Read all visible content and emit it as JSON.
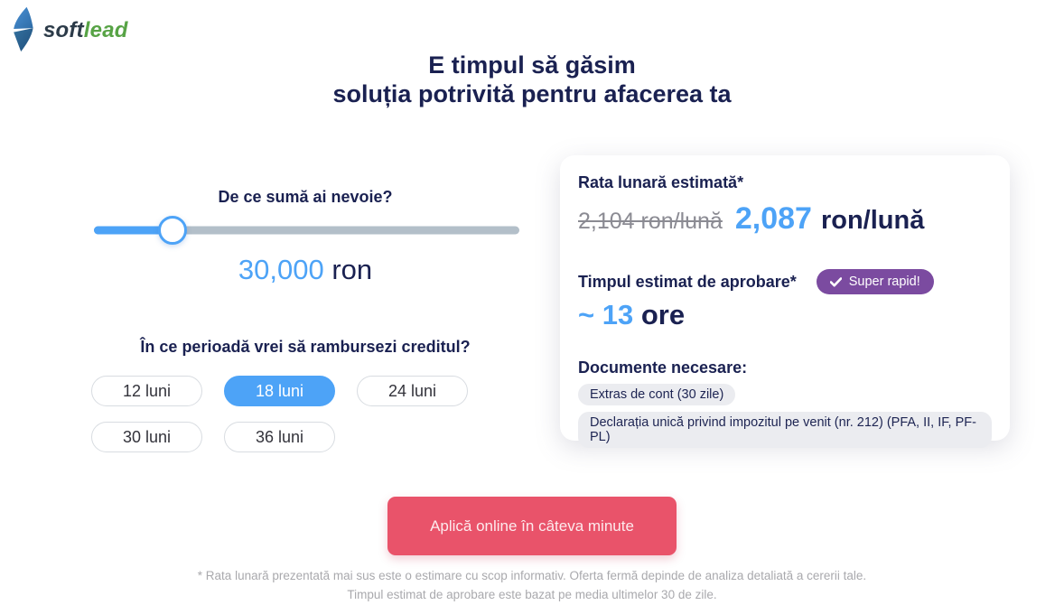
{
  "logo": {
    "brand_soft": "soft",
    "brand_lead": "lead"
  },
  "header": {
    "title_line1": "E timpul să găsim",
    "title_line2": "soluția potrivită pentru afacerea ta"
  },
  "loan": {
    "amount_question": "De ce sumă ai nevoie?",
    "amount_value": "30,000",
    "amount_currency": " ron",
    "slider_percent": 19,
    "period_question": "În ce perioadă vrei să rambursezi creditul?",
    "period_options": [
      {
        "label": "12 luni",
        "selected": false
      },
      {
        "label": "18 luni",
        "selected": true
      },
      {
        "label": "24 luni",
        "selected": false
      },
      {
        "label": "30 luni",
        "selected": false
      },
      {
        "label": "36 luni",
        "selected": false
      }
    ]
  },
  "estimate": {
    "rate_label": "Rata lunară estimată*",
    "rate_old": "2,104 ron/lună",
    "rate_new": "2,087",
    "rate_unit": "ron/lună",
    "approval_label": "Timpul estimat de aprobare*",
    "approval_badge": "Super rapid!",
    "approval_value": "~ 13",
    "approval_unit": " ore",
    "documents_label": "Documente necesare:",
    "documents": [
      "Extras de cont (30 zile)",
      "Declarația unică privind impozitul pe venit (nr. 212) (PFA, II, IF, PF-PL)"
    ]
  },
  "cta": {
    "label": "Aplică online în câteva minute"
  },
  "footer": {
    "line1": "* Rata lunară prezentată mai sus este o estimare cu scop informativ. Oferta fermă depinde de analiza detaliată a cererii tale.",
    "line2": "Timpul estimat de aprobare este bazat pe media ultimelor 30 de zile."
  },
  "colors": {
    "accent_blue": "#4da3f7",
    "navy": "#1a2151",
    "badge_purple": "#7b4ba0",
    "cta_red": "#e9536a",
    "logo_green": "#57a345",
    "track_gray": "#b3bfc9"
  }
}
